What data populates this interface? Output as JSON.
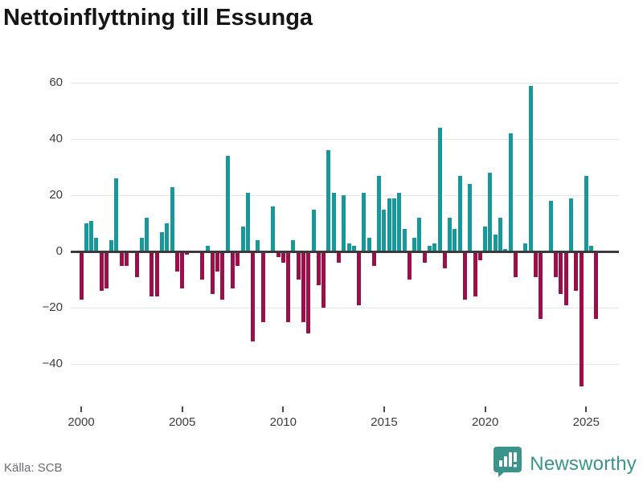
{
  "header": {
    "title": "Nettoinflyttning till Essunga"
  },
  "footer": {
    "source": "Källa: SCB",
    "brand": "Newsworthy"
  },
  "colors": {
    "positive_bar": "#17999b",
    "negative_bar": "#9b1049",
    "gridline": "#e4e4e4",
    "zero_line": "#3a3a3a",
    "brand_teal": "#3a948c"
  },
  "chart_data": {
    "type": "bar",
    "title": "Nettoinflyttning till Essunga",
    "series_name": "Nettoinflyttning per kvartal",
    "frequency": "quarterly",
    "x_start": "2000 Q1",
    "x_end": "2025 Q3",
    "x_tick_labels": [
      "2000",
      "2005",
      "2010",
      "2015",
      "2020",
      "2025"
    ],
    "y_ticks": [
      60,
      40,
      20,
      0,
      -20,
      -40
    ],
    "ylim": [
      -50,
      62
    ],
    "grid": "horizontal",
    "legend": "none",
    "values": [
      -17,
      10,
      11,
      5,
      -14,
      -13,
      4,
      26,
      -5,
      -5,
      0,
      -9,
      5,
      12,
      -16,
      -16,
      7,
      10,
      23,
      -7,
      -13,
      -1,
      0,
      0,
      -10,
      2,
      -15,
      -7,
      -17,
      34,
      -13,
      -5,
      9,
      21,
      -32,
      4,
      -25,
      0,
      16,
      -2,
      -4,
      -25,
      4,
      -10,
      -25,
      -29,
      15,
      -12,
      -20,
      36,
      21,
      -4,
      20,
      3,
      2,
      -19,
      21,
      5,
      -5,
      27,
      15,
      19,
      19,
      21,
      8,
      -10,
      5,
      12,
      -4,
      2,
      3,
      44,
      -6,
      12,
      8,
      27,
      -17,
      24,
      -16,
      -3,
      9,
      28,
      6,
      12,
      1,
      42,
      -9,
      0,
      3,
      59,
      -9,
      -24,
      0,
      18,
      -9,
      -15,
      -19,
      19,
      -14,
      -48,
      27,
      2,
      -24
    ]
  }
}
